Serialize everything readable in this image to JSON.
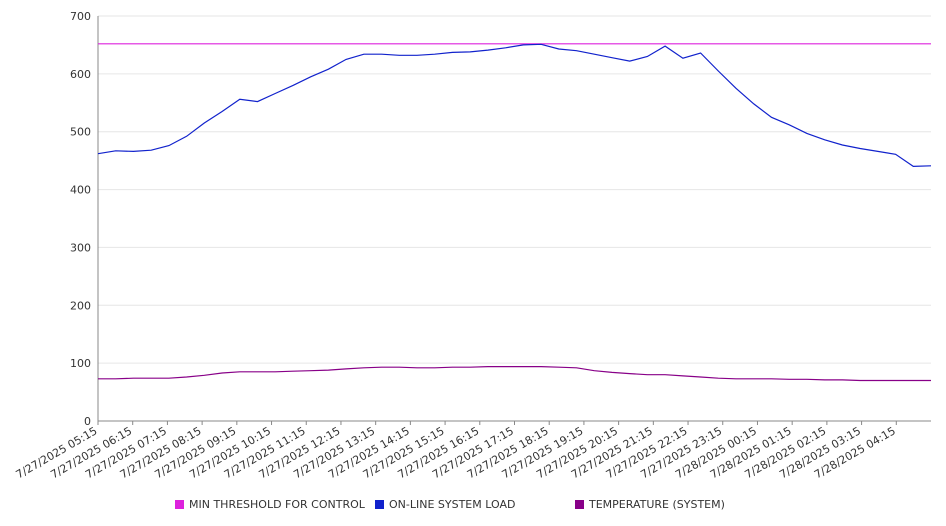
{
  "chart_data": {
    "type": "line",
    "title": "",
    "xlabel": "",
    "ylabel": "",
    "ylim": [
      0,
      700
    ],
    "yticks": [
      0,
      100,
      200,
      300,
      400,
      500,
      600,
      700
    ],
    "xtick_labels": [
      "7/27/2025 05:15",
      "7/27/2025 06:15",
      "7/27/2025 07:15",
      "7/27/2025 08:15",
      "7/27/2025 09:15",
      "7/27/2025 10:15",
      "7/27/2025 11:15",
      "7/27/2025 12:15",
      "7/27/2025 13:15",
      "7/27/2025 14:15",
      "7/27/2025 15:15",
      "7/27/2025 16:15",
      "7/27/2025 17:15",
      "7/27/2025 18:15",
      "7/27/2025 19:15",
      "7/27/2025 20:15",
      "7/27/2025 21:15",
      "7/27/2025 22:15",
      "7/27/2025 23:15",
      "7/28/2025 00:15",
      "7/28/2025 01:15",
      "7/28/2025 02:15",
      "7/28/2025 03:15",
      "7/28/2025 04:15"
    ],
    "x": [
      "7/27/2025 05:15",
      "7/27/2025 05:45",
      "7/27/2025 06:15",
      "7/27/2025 06:45",
      "7/27/2025 07:15",
      "7/27/2025 07:45",
      "7/27/2025 08:15",
      "7/27/2025 08:45",
      "7/27/2025 09:15",
      "7/27/2025 09:45",
      "7/27/2025 10:15",
      "7/27/2025 10:45",
      "7/27/2025 11:15",
      "7/27/2025 11:45",
      "7/27/2025 12:15",
      "7/27/2025 12:45",
      "7/27/2025 13:15",
      "7/27/2025 13:45",
      "7/27/2025 14:15",
      "7/27/2025 14:45",
      "7/27/2025 15:15",
      "7/27/2025 15:45",
      "7/27/2025 16:15",
      "7/27/2025 16:45",
      "7/27/2025 17:15",
      "7/27/2025 17:45",
      "7/27/2025 18:15",
      "7/27/2025 18:45",
      "7/27/2025 19:15",
      "7/27/2025 19:45",
      "7/27/2025 20:15",
      "7/27/2025 20:45",
      "7/27/2025 21:15",
      "7/27/2025 21:45",
      "7/27/2025 22:15",
      "7/27/2025 22:45",
      "7/27/2025 23:15",
      "7/27/2025 23:45",
      "7/28/2025 00:15",
      "7/28/2025 00:45",
      "7/28/2025 01:15",
      "7/28/2025 01:45",
      "7/28/2025 02:15",
      "7/28/2025 02:45",
      "7/28/2025 03:15",
      "7/28/2025 03:45",
      "7/28/2025 04:15",
      "7/28/2025 04:45"
    ],
    "series": [
      {
        "name": "MIN THRESHOLD FOR CONTROL",
        "color": "#dd22dd",
        "values": [
          652,
          652,
          652,
          652,
          652,
          652,
          652,
          652,
          652,
          652,
          652,
          652,
          652,
          652,
          652,
          652,
          652,
          652,
          652,
          652,
          652,
          652,
          652,
          652,
          652,
          652,
          652,
          652,
          652,
          652,
          652,
          652,
          652,
          652,
          652,
          652,
          652,
          652,
          652,
          652,
          652,
          652,
          652,
          652,
          652,
          652,
          652,
          652
        ]
      },
      {
        "name": "ON-LINE SYSTEM LOAD",
        "color": "#1122cc",
        "values": [
          462,
          467,
          466,
          468,
          476,
          492,
          515,
          535,
          556,
          552,
          566,
          580,
          595,
          608,
          625,
          634,
          634,
          632,
          632,
          634,
          637,
          638,
          641,
          645,
          650,
          651,
          643,
          640,
          634,
          628,
          622,
          630,
          648,
          627,
          636,
          605,
          575,
          548,
          525,
          512,
          497,
          486,
          477,
          471,
          466,
          461,
          440,
          441
        ]
      },
      {
        "name": "TEMPERATURE (SYSTEM)",
        "color": "#880088",
        "values": [
          73,
          73,
          74,
          74,
          74,
          76,
          79,
          83,
          85,
          85,
          85,
          86,
          87,
          88,
          90,
          92,
          93,
          93,
          92,
          92,
          93,
          93,
          94,
          94,
          94,
          94,
          93,
          92,
          87,
          84,
          82,
          80,
          80,
          78,
          76,
          74,
          73,
          73,
          73,
          72,
          72,
          71,
          71,
          70,
          70,
          70,
          70,
          70
        ]
      }
    ],
    "grid": true,
    "legend_position": "bottom"
  }
}
